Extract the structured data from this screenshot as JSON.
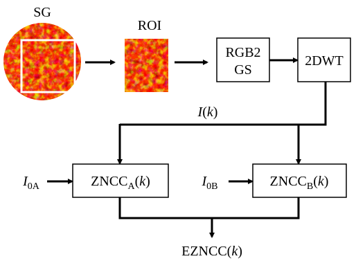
{
  "diagram": {
    "sg": {
      "parts": [
        {
          "text": "SG"
        }
      ]
    },
    "roi": {
      "parts": [
        {
          "text": "ROI"
        }
      ]
    },
    "rgb2gs": {
      "lines": [
        [
          {
            "text": "RGB2"
          }
        ],
        [
          {
            "text": "GS"
          }
        ]
      ]
    },
    "dwt": {
      "parts": [
        {
          "text": "2DWT"
        }
      ]
    },
    "ik": {
      "parts": [
        {
          "text": "I",
          "style": "italic"
        },
        {
          "text": "("
        },
        {
          "text": "k",
          "style": "italic"
        },
        {
          "text": ")"
        }
      ]
    },
    "i0a": {
      "parts": [
        {
          "text": "I",
          "style": "italic"
        },
        {
          "text": "0A",
          "style": "sub"
        }
      ]
    },
    "zncca": {
      "parts": [
        {
          "text": "ZNCC"
        },
        {
          "text": "A",
          "style": "sub"
        },
        {
          "text": "("
        },
        {
          "text": "k",
          "style": "italic"
        },
        {
          "text": ")"
        }
      ]
    },
    "i0b": {
      "parts": [
        {
          "text": "I",
          "style": "italic"
        },
        {
          "text": "0B",
          "style": "sub"
        }
      ]
    },
    "znccb": {
      "parts": [
        {
          "text": "ZNCC"
        },
        {
          "text": "B",
          "style": "sub"
        },
        {
          "text": "("
        },
        {
          "text": "k",
          "style": "italic"
        },
        {
          "text": ")"
        }
      ]
    },
    "ezncc": {
      "parts": [
        {
          "text": "EZNCC("
        },
        {
          "text": "k",
          "style": "italic"
        },
        {
          "text": ")"
        }
      ]
    }
  }
}
